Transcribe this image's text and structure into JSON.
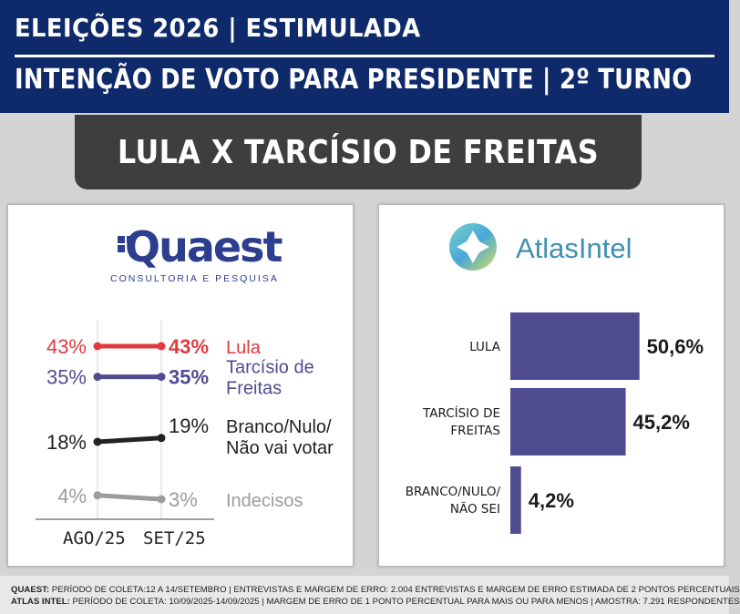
{
  "header": {
    "line1": "ELEIÇÕES 2026 | ESTIMULADA",
    "line2": "INTENÇÃO DE VOTO PARA PRESIDENTE | 2º TURNO"
  },
  "subtitle": "LULA X TARCÍSIO DE FREITAS",
  "footer": {
    "quaest_label": "QUAEST:",
    "quaest_text": " PERÍODO DE COLETA:12 A 14/SETEMBRO | ENTREVISTAS E MARGEM DE ERRO: 2.004 ENTREVISTAS E MARGEM DE ERRO ESTIMADA DE 2 PONTOS PERCENTUAIS",
    "atlas_label": "ATLAS INTEL:",
    "atlas_text": " PERÍODO DE COLETA: 10/09/2025-14/09/2025 | MARGEM DE ERRO DE 1 PONTO PERCENTUAL PARA MAIS OU PARA MENOS | AMOSTRA: 7.291 RESPONDENTES"
  },
  "logos": {
    "quaest_name": "Quaest",
    "quaest_tagline": "CONSULTORIA E PESQUISA",
    "atlas_name": "AtlasIntel"
  },
  "chart_data": [
    {
      "type": "line",
      "source": "Quaest",
      "categories": [
        "AGO/25",
        "SET/25"
      ],
      "series": [
        {
          "label_lines": [
            "Lula"
          ],
          "values": [
            43,
            43
          ],
          "start_label": "43%",
          "end_label": "43%",
          "color": "#e03a3e"
        },
        {
          "label_lines": [
            "Tarcísio de",
            "Freitas"
          ],
          "values": [
            35,
            35
          ],
          "start_label": "35%",
          "end_label": "35%",
          "color": "#4f4c90"
        },
        {
          "label_lines": [
            "Branco/Nulo/",
            "Não vai votar"
          ],
          "values": [
            18,
            19
          ],
          "start_label": "18%",
          "end_label": "19%",
          "color": "#222222"
        },
        {
          "label_lines": [
            "Indecisos"
          ],
          "values": [
            4,
            3
          ],
          "start_label": "4%",
          "end_label": "3%",
          "color": "#9c9c9c"
        }
      ]
    },
    {
      "type": "bar",
      "orientation": "horizontal",
      "source": "AtlasIntel",
      "categories": [
        [
          "LULA"
        ],
        [
          "TARCÍSIO DE",
          "FREITAS"
        ],
        [
          "BRANCO/NULO/",
          "NÃO SEI"
        ]
      ],
      "values": [
        50.6,
        45.2,
        4.2
      ],
      "value_labels": [
        "50,6%",
        "45,2%",
        "4,2%"
      ],
      "bar_color": "#4f4c90"
    }
  ]
}
